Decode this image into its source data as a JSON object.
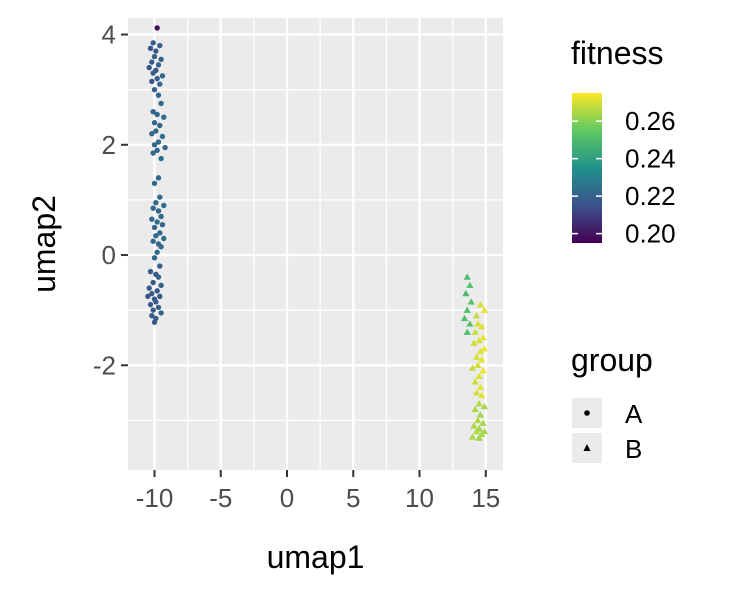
{
  "chart_data": {
    "type": "scatter",
    "xlabel": "umap1",
    "ylabel": "umap2",
    "xlim": [
      -12,
      16.3
    ],
    "ylim": [
      -3.9,
      4.3
    ],
    "x_ticks": [
      -10,
      -5,
      0,
      5,
      10,
      15
    ],
    "y_ticks": [
      -2,
      0,
      2,
      4
    ],
    "grid": true,
    "background": "#ebebeb",
    "color_legend": {
      "title": "fitness",
      "palette": "viridis",
      "range": [
        0.195,
        0.275
      ],
      "ticks": [
        0.2,
        0.22,
        0.24,
        0.26
      ],
      "tick_labels": [
        "0.20",
        "0.22",
        "0.24",
        "0.26"
      ]
    },
    "shape_legend": {
      "title": "group",
      "entries": [
        {
          "label": "A",
          "shape": "circle"
        },
        {
          "label": "B",
          "shape": "triangle"
        }
      ]
    },
    "series": [
      {
        "name": "A",
        "shape": "circle",
        "points": [
          [
            -9.8,
            4.12,
            0.199
          ],
          [
            -10.1,
            3.85,
            0.218
          ],
          [
            -9.6,
            3.8,
            0.219
          ],
          [
            -10.3,
            3.75,
            0.217
          ],
          [
            -9.9,
            3.7,
            0.216
          ],
          [
            -10.0,
            3.6,
            0.219
          ],
          [
            -9.5,
            3.55,
            0.221
          ],
          [
            -10.2,
            3.5,
            0.218
          ],
          [
            -9.7,
            3.45,
            0.22
          ],
          [
            -10.4,
            3.4,
            0.217
          ],
          [
            -9.9,
            3.35,
            0.216
          ],
          [
            -10.1,
            3.3,
            0.219
          ],
          [
            -9.4,
            3.25,
            0.222
          ],
          [
            -9.8,
            3.2,
            0.218
          ],
          [
            -10.2,
            3.15,
            0.217
          ],
          [
            -9.6,
            3.1,
            0.22
          ],
          [
            -10.0,
            3.0,
            0.219
          ],
          [
            -9.7,
            2.9,
            0.221
          ],
          [
            -9.5,
            2.75,
            0.222
          ],
          [
            -10.1,
            2.6,
            0.221
          ],
          [
            -9.8,
            2.55,
            0.223
          ],
          [
            -9.3,
            2.5,
            0.224
          ],
          [
            -10.0,
            2.4,
            0.222
          ],
          [
            -9.6,
            2.35,
            0.221
          ],
          [
            -9.9,
            2.25,
            0.223
          ],
          [
            -10.2,
            2.2,
            0.222
          ],
          [
            -9.4,
            2.15,
            0.224
          ],
          [
            -9.7,
            2.05,
            0.222
          ],
          [
            -10.0,
            2.0,
            0.221
          ],
          [
            -9.2,
            1.95,
            0.223
          ],
          [
            -9.8,
            1.9,
            0.222
          ],
          [
            -10.1,
            1.85,
            0.223
          ],
          [
            -9.5,
            1.75,
            0.224
          ],
          [
            -9.7,
            1.4,
            0.222
          ],
          [
            -10.0,
            1.3,
            0.223
          ],
          [
            -9.6,
            1.05,
            0.222
          ],
          [
            -9.9,
            0.95,
            0.223
          ],
          [
            -9.3,
            0.9,
            0.224
          ],
          [
            -10.1,
            0.85,
            0.222
          ],
          [
            -9.7,
            0.8,
            0.221
          ],
          [
            -9.5,
            0.7,
            0.223
          ],
          [
            -10.2,
            0.65,
            0.222
          ],
          [
            -9.8,
            0.6,
            0.224
          ],
          [
            -9.4,
            0.55,
            0.222
          ],
          [
            -10.0,
            0.5,
            0.221
          ],
          [
            -9.6,
            0.4,
            0.223
          ],
          [
            -9.9,
            0.35,
            0.222
          ],
          [
            -9.3,
            0.3,
            0.224
          ],
          [
            -10.1,
            0.25,
            0.222
          ],
          [
            -9.7,
            0.2,
            0.221
          ],
          [
            -9.5,
            0.15,
            0.223
          ],
          [
            -9.8,
            0.05,
            0.222
          ],
          [
            -10.0,
            -0.05,
            0.221
          ],
          [
            -9.6,
            -0.2,
            0.219
          ],
          [
            -10.3,
            -0.3,
            0.218
          ],
          [
            -9.9,
            -0.35,
            0.217
          ],
          [
            -9.7,
            -0.4,
            0.219
          ],
          [
            -10.1,
            -0.5,
            0.218
          ],
          [
            -9.5,
            -0.55,
            0.22
          ],
          [
            -10.4,
            -0.6,
            0.217
          ],
          [
            -9.8,
            -0.65,
            0.216
          ],
          [
            -10.2,
            -0.7,
            0.218
          ],
          [
            -9.6,
            -0.75,
            0.217
          ],
          [
            -10.5,
            -0.75,
            0.215
          ],
          [
            -10.0,
            -0.8,
            0.216
          ],
          [
            -9.9,
            -0.85,
            0.218
          ],
          [
            -10.3,
            -0.9,
            0.217
          ],
          [
            -9.7,
            -0.95,
            0.219
          ],
          [
            -10.1,
            -1.0,
            0.218
          ],
          [
            -9.5,
            -1.05,
            0.22
          ],
          [
            -10.2,
            -1.1,
            0.217
          ],
          [
            -9.9,
            -1.15,
            0.218
          ],
          [
            -10.0,
            -1.22,
            0.217
          ]
        ]
      },
      {
        "name": "B",
        "shape": "triangle",
        "points": [
          [
            13.6,
            -0.4,
            0.25
          ],
          [
            13.8,
            -0.55,
            0.252
          ],
          [
            13.5,
            -0.7,
            0.249
          ],
          [
            13.9,
            -0.85,
            0.253
          ],
          [
            13.6,
            -1.0,
            0.251
          ],
          [
            14.6,
            -0.9,
            0.27
          ],
          [
            14.9,
            -1.0,
            0.272
          ],
          [
            14.3,
            -1.1,
            0.268
          ],
          [
            13.4,
            -1.15,
            0.25
          ],
          [
            13.8,
            -1.25,
            0.253
          ],
          [
            14.4,
            -1.25,
            0.27
          ],
          [
            14.7,
            -1.3,
            0.271
          ],
          [
            13.6,
            -1.4,
            0.251
          ],
          [
            14.2,
            -1.4,
            0.268
          ],
          [
            14.8,
            -1.5,
            0.272
          ],
          [
            14.5,
            -1.55,
            0.27
          ],
          [
            14.1,
            -1.6,
            0.269
          ],
          [
            14.9,
            -1.7,
            0.273
          ],
          [
            14.6,
            -1.75,
            0.271
          ],
          [
            14.3,
            -1.85,
            0.27
          ],
          [
            14.7,
            -1.9,
            0.272
          ],
          [
            14.4,
            -2.0,
            0.27
          ],
          [
            14.0,
            -2.05,
            0.268
          ],
          [
            14.8,
            -2.1,
            0.273
          ],
          [
            14.5,
            -2.2,
            0.271
          ],
          [
            14.2,
            -2.3,
            0.269
          ],
          [
            14.6,
            -2.4,
            0.272
          ],
          [
            14.3,
            -2.5,
            0.27
          ],
          [
            14.7,
            -2.55,
            0.271
          ],
          [
            14.5,
            -2.7,
            0.266
          ],
          [
            14.9,
            -2.75,
            0.264
          ],
          [
            14.2,
            -2.8,
            0.265
          ],
          [
            14.6,
            -2.9,
            0.263
          ],
          [
            14.4,
            -3.0,
            0.266
          ],
          [
            14.8,
            -3.05,
            0.264
          ],
          [
            14.1,
            -3.1,
            0.265
          ],
          [
            14.5,
            -3.15,
            0.263
          ],
          [
            14.3,
            -3.2,
            0.266
          ],
          [
            14.7,
            -3.25,
            0.264
          ],
          [
            14.0,
            -3.3,
            0.265
          ],
          [
            14.5,
            -3.32,
            0.263
          ],
          [
            14.9,
            -3.2,
            0.264
          ]
        ]
      }
    ]
  }
}
